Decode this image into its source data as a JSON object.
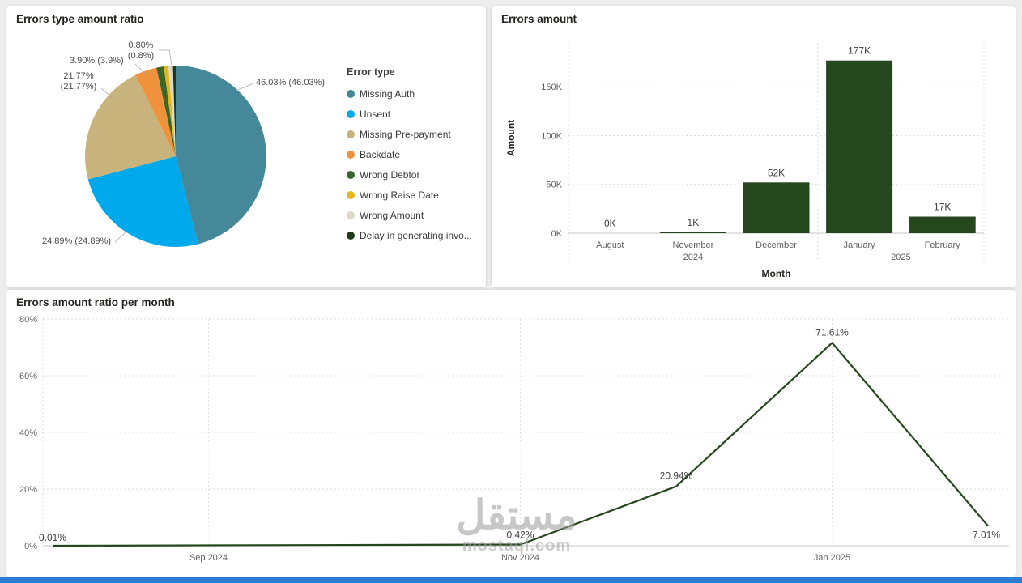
{
  "watermark": {
    "title": "مستقل",
    "subtitle": "mostaql.com"
  },
  "theme": {
    "accent_bar_color": "#2b7cd3",
    "background": "#ededed",
    "card_background": "#ffffff"
  },
  "chart_data": [
    {
      "type": "pie",
      "title": "Errors type amount ratio",
      "legend_title": "Error type",
      "legend_position": "right",
      "categories": [
        "Missing Auth",
        "Unsent",
        "Missing Pre-payment",
        "Backdate",
        "Wrong Debtor",
        "Wrong Raise Date",
        "Wrong Amount",
        "Delay in generating invo..."
      ],
      "values": [
        46.03,
        24.89,
        21.77,
        3.9,
        1.31,
        0.8,
        0.8,
        0.5
      ],
      "colors": [
        "#45889a",
        "#00a8ec",
        "#c9b37c",
        "#f0913c",
        "#3a6629",
        "#e3b61c",
        "#ded8c6",
        "#1f3a18"
      ],
      "callouts": [
        "46.03% (46.03%)",
        "24.89% (24.89%)",
        "21.77%\n(21.77%)",
        "3.90% (3.9%)",
        "0.80%\n(0.8%)"
      ]
    },
    {
      "type": "bar",
      "title": "Errors amount",
      "xlabel": "Month",
      "ylabel": "Amount",
      "categories": [
        "August",
        "November",
        "December",
        "January",
        "February"
      ],
      "year_groups": [
        {
          "label": "2024",
          "span": [
            0,
            2
          ]
        },
        {
          "label": "2025",
          "span": [
            3,
            4
          ]
        }
      ],
      "values": [
        0,
        1,
        52,
        177,
        17
      ],
      "value_labels": [
        "0K",
        "1K",
        "52K",
        "177K",
        "17K"
      ],
      "y_ticks": [
        {
          "value": 0,
          "label": "0K"
        },
        {
          "value": 50,
          "label": "50K"
        },
        {
          "value": 100,
          "label": "100K"
        },
        {
          "value": 150,
          "label": "150K"
        }
      ],
      "ylim": [
        0,
        195
      ],
      "bar_color": "#26471e",
      "grid": true
    },
    {
      "type": "line",
      "title": "Errors amount ratio per month",
      "points": [
        {
          "month_index": 0,
          "month": "Aug 2024",
          "label": "0.01%",
          "value": 0.01
        },
        {
          "month_index": 3,
          "month": "Nov 2024",
          "label": "0.42%",
          "value": 0.42
        },
        {
          "month_index": 4,
          "month": "Dec 2024",
          "label": "20.94%",
          "value": 20.94
        },
        {
          "month_index": 5,
          "month": "Jan 2025",
          "label": "71.61%",
          "value": 71.61
        },
        {
          "month_index": 6,
          "month": "Feb 2025",
          "label": "7.01%",
          "value": 7.01
        }
      ],
      "x_ticks": [
        {
          "month_index": 1,
          "label": "Sep 2024"
        },
        {
          "month_index": 3,
          "label": "Nov 2024"
        },
        {
          "month_index": 5,
          "label": "Jan 2025"
        }
      ],
      "y_ticks": [
        {
          "value": 0,
          "label": "0%"
        },
        {
          "value": 20,
          "label": "20%"
        },
        {
          "value": 40,
          "label": "40%"
        },
        {
          "value": 60,
          "label": "60%"
        },
        {
          "value": 80,
          "label": "80%"
        }
      ],
      "ylim": [
        0,
        80
      ],
      "line_color": "#26471e",
      "grid": true
    }
  ]
}
